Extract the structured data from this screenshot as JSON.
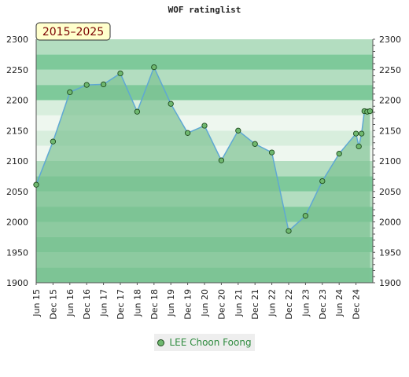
{
  "chart_data": {
    "type": "area",
    "title": "WOF ratinglist",
    "period_label": "2015–2025",
    "ylim": [
      1900,
      2300
    ],
    "y_ticks": [
      1900,
      1950,
      2000,
      2050,
      2100,
      2150,
      2200,
      2250,
      2300
    ],
    "x_tick_labels": [
      "Jun 15",
      "Dec 15",
      "Jun 16",
      "Dec 16",
      "Jun 17",
      "Dec 17",
      "Jun 18",
      "Dec 18",
      "Jun 19",
      "Dec 19",
      "Jun 20",
      "Dec 20",
      "Jun 21",
      "Dec 21",
      "Jun 22",
      "Dec 22",
      "Jun 23",
      "Dec 23",
      "Jun 24",
      "Dec 24"
    ],
    "grid": "horizontal bands",
    "legend_position": "bottom-center",
    "series": [
      {
        "name": "LEE Choon Foong",
        "color": "#5fa8d3",
        "points": [
          {
            "x": "2015-06",
            "y": 2061
          },
          {
            "x": "2015-12",
            "y": 2132
          },
          {
            "x": "2016-06",
            "y": 2213
          },
          {
            "x": "2016-12",
            "y": 2225
          },
          {
            "x": "2017-06",
            "y": 2226
          },
          {
            "x": "2017-12",
            "y": 2244
          },
          {
            "x": "2018-06",
            "y": 2181
          },
          {
            "x": "2018-12",
            "y": 2254
          },
          {
            "x": "2019-06",
            "y": 2194
          },
          {
            "x": "2019-12",
            "y": 2146
          },
          {
            "x": "2020-06",
            "y": 2158
          },
          {
            "x": "2020-12",
            "y": 2101
          },
          {
            "x": "2021-06",
            "y": 2150
          },
          {
            "x": "2021-12",
            "y": 2128
          },
          {
            "x": "2022-06",
            "y": 2114
          },
          {
            "x": "2022-12",
            "y": 1985
          },
          {
            "x": "2023-06",
            "y": 2010
          },
          {
            "x": "2023-12",
            "y": 2067
          },
          {
            "x": "2024-06",
            "y": 2112
          },
          {
            "x": "2024-12",
            "y": 2145
          },
          {
            "x": "2025-01",
            "y": 2124
          },
          {
            "x": "2025-02",
            "y": 2145
          },
          {
            "x": "2025-03",
            "y": 2182
          },
          {
            "x": "2025-04",
            "y": 2181
          },
          {
            "x": "2025-05",
            "y": 2182
          }
        ]
      }
    ]
  },
  "colors": {
    "band_dark": "#7ec99a",
    "band_light": "#b3ddc0",
    "band_pale": "#eef7ef",
    "area_fill": "#7dc293",
    "marker_fill": "#6fb86f",
    "marker_stroke": "#1d4a1d",
    "badge_fill": "#ffffcc",
    "badge_text": "#7a0000"
  }
}
